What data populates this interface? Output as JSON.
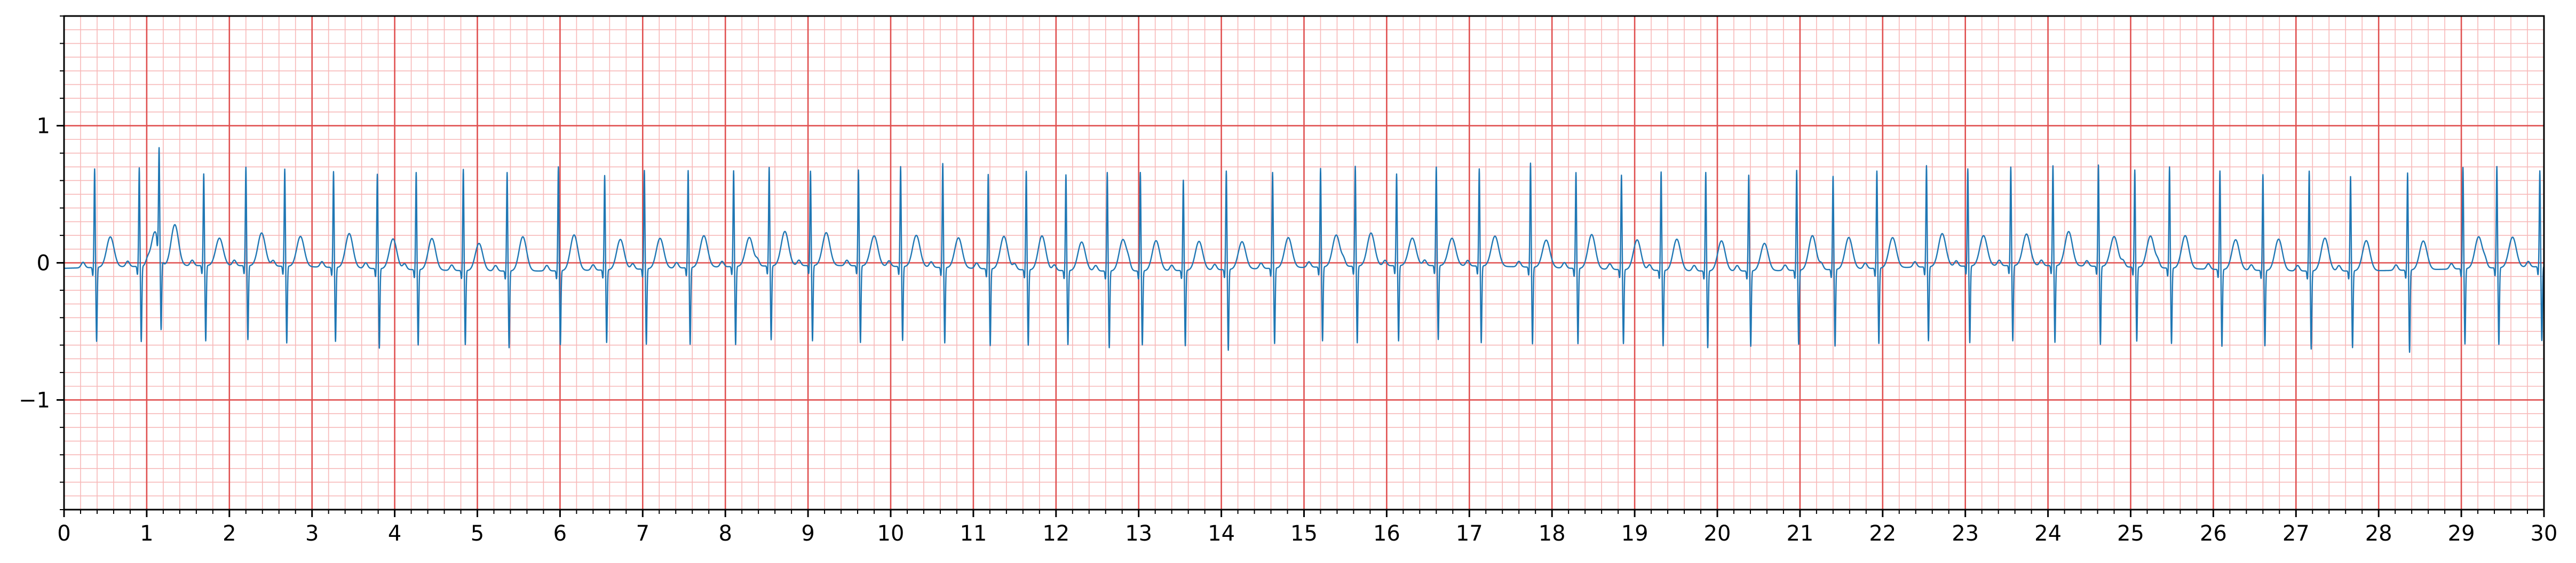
{
  "chart_data": {
    "type": "line",
    "title": "",
    "xlabel": "",
    "ylabel": "",
    "xlim": [
      0,
      30
    ],
    "ylim": [
      -1.8,
      1.8
    ],
    "grid": {
      "major": "on",
      "minor": "on",
      "major_x_step": 1,
      "minor_x_step": 0.2,
      "major_y_step": 1,
      "minor_y_step": 0.1,
      "major_color": "#e05050",
      "minor_color": "#f7b8b8"
    },
    "x_ticks": [
      0,
      1,
      2,
      3,
      4,
      5,
      6,
      7,
      8,
      9,
      10,
      11,
      12,
      13,
      14,
      15,
      16,
      17,
      18,
      19,
      20,
      21,
      22,
      23,
      24,
      25,
      26,
      27,
      28,
      29,
      30
    ],
    "x_tick_labels": [
      "0",
      "1",
      "2",
      "3",
      "4",
      "5",
      "6",
      "7",
      "8",
      "9",
      "10",
      "11",
      "12",
      "13",
      "14",
      "15",
      "16",
      "17",
      "18",
      "19",
      "20",
      "21",
      "22",
      "23",
      "24",
      "25",
      "26",
      "27",
      "28",
      "29",
      "30"
    ],
    "y_ticks": [
      -1,
      0,
      1
    ],
    "y_tick_labels": [
      "−1",
      "0",
      "1"
    ],
    "series": [
      {
        "color": "#1f77b4",
        "sample_rate_hz": 100,
        "beat_times": [
          0.37,
          0.91,
          1.15,
          1.69,
          2.2,
          2.67,
          3.26,
          3.79,
          4.26,
          4.83,
          5.36,
          5.98,
          6.54,
          7.02,
          7.55,
          8.1,
          8.53,
          9.03,
          9.61,
          10.12,
          10.63,
          11.18,
          11.64,
          12.12,
          12.62,
          13.02,
          13.54,
          14.06,
          14.62,
          15.2,
          15.62,
          16.12,
          16.6,
          17.12,
          17.74,
          18.29,
          18.84,
          19.32,
          19.86,
          20.38,
          20.96,
          21.4,
          21.93,
          22.53,
          23.03,
          23.55,
          24.06,
          24.61,
          25.05,
          25.47,
          26.08,
          26.6,
          27.16,
          27.66,
          28.35,
          29.02,
          29.43,
          29.95
        ],
        "r_peaks": [
          0.68,
          0.68,
          0.69,
          0.63,
          0.68,
          0.67,
          0.66,
          0.65,
          0.67,
          0.7,
          0.68,
          0.72,
          0.65,
          0.68,
          0.67,
          0.66,
          0.68,
          0.65,
          0.66,
          0.69,
          0.72,
          0.65,
          0.68,
          0.66,
          0.68,
          0.68,
          0.62,
          0.68,
          0.66,
          0.68,
          0.69,
          0.63,
          0.68,
          0.67,
          0.72,
          0.66,
          0.65,
          0.68,
          0.68,
          0.66,
          0.69,
          0.64,
          0.67,
          0.7,
          0.67,
          0.68,
          0.69,
          0.7,
          0.67,
          0.7,
          0.68,
          0.66,
          0.69,
          0.65,
          0.67,
          0.7,
          0.7,
          0.66
        ],
        "s_troughs": [
          -0.52,
          -0.53,
          -0.51,
          -0.53,
          -0.52,
          -0.54,
          -0.52,
          -0.56,
          -0.53,
          -0.52,
          -0.54,
          -0.52,
          -0.51,
          -0.53,
          -0.54,
          -0.55,
          -0.52,
          -0.53,
          -0.54,
          -0.52,
          -0.53,
          -0.54,
          -0.53,
          -0.52,
          -0.54,
          -0.52,
          -0.53,
          -0.57,
          -0.53,
          -0.52,
          -0.54,
          -0.53,
          -0.52,
          -0.54,
          -0.54,
          -0.53,
          -0.52,
          -0.53,
          -0.54,
          -0.53,
          -0.52,
          -0.54,
          -0.53,
          -0.52,
          -0.54,
          -0.53,
          -0.54,
          -0.55,
          -0.52,
          -0.53,
          -0.54,
          -0.53,
          -0.55,
          -0.54,
          -0.58,
          -0.53,
          -0.54,
          -0.52
        ],
        "t_peaks": [
          0.22,
          0.25,
          0.3,
          0.2,
          0.24,
          0.22,
          0.25,
          0.22,
          0.23,
          0.2,
          0.25,
          0.26,
          0.22,
          0.22,
          0.23,
          0.21,
          0.25,
          0.24,
          0.22,
          0.23,
          0.22,
          0.24,
          0.25,
          0.21,
          0.23,
          0.22,
          0.21,
          0.2,
          0.22,
          0.23,
          0.24,
          0.2,
          0.2,
          0.22,
          0.2,
          0.25,
          0.22,
          0.23,
          0.22,
          0.2,
          0.25,
          0.23,
          0.22,
          0.24,
          0.22,
          0.23,
          0.25,
          0.22,
          0.23,
          0.24,
          0.22,
          0.23,
          0.24,
          0.22,
          0.21,
          0.23,
          0.22,
          0.2
        ]
      }
    ]
  }
}
